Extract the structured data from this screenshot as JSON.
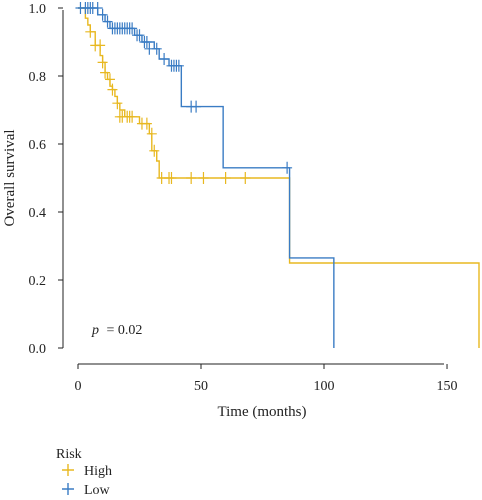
{
  "chart_data": {
    "type": "line",
    "xlabel": "Time (months)",
    "ylabel": "Overall survival",
    "xlim": [
      0,
      163
    ],
    "ylim": [
      0,
      1.0
    ],
    "xticks": [
      0,
      50,
      100,
      150
    ],
    "yticks": [
      0.0,
      0.2,
      0.4,
      0.6,
      0.8,
      1.0
    ],
    "xtick_labels": [
      "0",
      "50",
      "100",
      "150"
    ],
    "ytick_labels": [
      "0.0",
      "0.2",
      "0.4",
      "0.6",
      "0.8",
      "1.0"
    ],
    "annotation": {
      "p_label": "p",
      "p_text": "= 0.02"
    },
    "legend": {
      "title": "Risk",
      "placement": "bottom-left"
    },
    "series": [
      {
        "name": "High",
        "color": "#e8b820",
        "steps": [
          [
            0,
            1.0
          ],
          [
            3,
            0.97
          ],
          [
            4,
            0.95
          ],
          [
            5,
            0.93
          ],
          [
            7,
            0.89
          ],
          [
            9,
            0.86
          ],
          [
            10,
            0.84
          ],
          [
            11,
            0.81
          ],
          [
            12,
            0.79
          ],
          [
            13,
            0.77
          ],
          [
            14,
            0.76
          ],
          [
            15,
            0.74
          ],
          [
            16,
            0.72
          ],
          [
            17,
            0.7
          ],
          [
            19,
            0.68
          ],
          [
            25,
            0.66
          ],
          [
            29,
            0.63
          ],
          [
            30,
            0.58
          ],
          [
            32,
            0.55
          ],
          [
            33,
            0.5
          ],
          [
            86,
            0.25
          ],
          [
            163,
            0.25
          ],
          [
            163,
            0.0
          ]
        ],
        "censor_times": [
          [
            5,
            0.93
          ],
          [
            7,
            0.89
          ],
          [
            9,
            0.89
          ],
          [
            10,
            0.84
          ],
          [
            11,
            0.81
          ],
          [
            13,
            0.79
          ],
          [
            14,
            0.76
          ],
          [
            16,
            0.72
          ],
          [
            17,
            0.68
          ],
          [
            18,
            0.68
          ],
          [
            20,
            0.68
          ],
          [
            21,
            0.68
          ],
          [
            22,
            0.68
          ],
          [
            26,
            0.66
          ],
          [
            28,
            0.66
          ],
          [
            30,
            0.63
          ],
          [
            31,
            0.58
          ],
          [
            34,
            0.5
          ],
          [
            37,
            0.5
          ],
          [
            38,
            0.5
          ],
          [
            46,
            0.5
          ],
          [
            51,
            0.5
          ],
          [
            60,
            0.5
          ],
          [
            68,
            0.5
          ]
        ]
      },
      {
        "name": "Low",
        "color": "#3a7cc4",
        "steps": [
          [
            0,
            1.0
          ],
          [
            8,
            0.98
          ],
          [
            11,
            0.96
          ],
          [
            13,
            0.94
          ],
          [
            23,
            0.92
          ],
          [
            26,
            0.9
          ],
          [
            31,
            0.88
          ],
          [
            33,
            0.85
          ],
          [
            37,
            0.83
          ],
          [
            42,
            0.71
          ],
          [
            59,
            0.53
          ],
          [
            86,
            0.265
          ],
          [
            104,
            0.265
          ],
          [
            104,
            0.0
          ]
        ],
        "censor_times": [
          [
            1,
            1.0
          ],
          [
            3,
            1.0
          ],
          [
            4,
            1.0
          ],
          [
            5,
            1.0
          ],
          [
            6,
            1.0
          ],
          [
            8,
            1.0
          ],
          [
            10,
            0.98
          ],
          [
            12,
            0.96
          ],
          [
            14,
            0.94
          ],
          [
            15,
            0.94
          ],
          [
            16,
            0.94
          ],
          [
            17,
            0.94
          ],
          [
            18,
            0.94
          ],
          [
            19,
            0.94
          ],
          [
            20,
            0.94
          ],
          [
            21,
            0.94
          ],
          [
            22,
            0.94
          ],
          [
            24,
            0.92
          ],
          [
            25,
            0.92
          ],
          [
            27,
            0.9
          ],
          [
            28,
            0.9
          ],
          [
            29,
            0.88
          ],
          [
            32,
            0.88
          ],
          [
            35,
            0.85
          ],
          [
            38,
            0.83
          ],
          [
            39,
            0.83
          ],
          [
            40,
            0.83
          ],
          [
            41,
            0.83
          ],
          [
            46,
            0.71
          ],
          [
            48,
            0.71
          ],
          [
            85,
            0.53
          ]
        ]
      }
    ]
  }
}
